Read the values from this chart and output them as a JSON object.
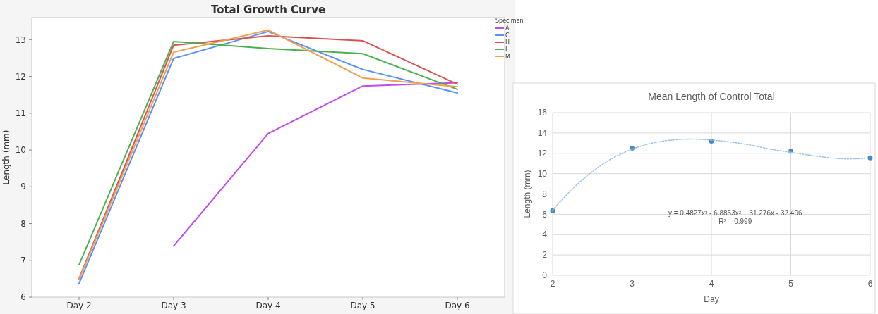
{
  "chart_data": [
    {
      "type": "line",
      "title": "Total Growth Curve",
      "ylabel": "Length (mm)",
      "legend_title": "Specimen",
      "legend": "top right",
      "grid": false,
      "marker": "none",
      "categories": [
        "Day 2",
        "Day 3",
        "Day 4",
        "Day 5",
        "Day 6"
      ],
      "ylim": [
        6,
        13.6
      ],
      "yticks": [
        6,
        7,
        8,
        9,
        10,
        11,
        12,
        13
      ],
      "series": [
        {
          "name": "A",
          "color": "#c04cf0",
          "values": [
            null,
            7.39,
            10.45,
            11.74,
            11.83
          ]
        },
        {
          "name": "C",
          "color": "#5b8ff9",
          "values": [
            6.37,
            12.49,
            13.22,
            12.19,
            11.55
          ]
        },
        {
          "name": "H",
          "color": "#d9534f",
          "values": [
            6.5,
            12.85,
            13.1,
            12.97,
            11.79
          ]
        },
        {
          "name": "L",
          "color": "#4caf50",
          "values": [
            6.88,
            12.95,
            12.76,
            12.62,
            11.65
          ]
        },
        {
          "name": "M",
          "color": "#f0a050",
          "values": [
            6.48,
            12.66,
            13.26,
            11.96,
            11.72
          ]
        }
      ]
    },
    {
      "type": "scatter",
      "title": "Mean Length of Control Total",
      "xlabel": "Day",
      "ylabel": "Length (mm)",
      "grid": true,
      "legend": false,
      "xlim": [
        2,
        6
      ],
      "xticks": [
        2,
        3,
        4,
        5,
        6
      ],
      "ylim": [
        0,
        16
      ],
      "yticks": [
        0,
        2,
        4,
        6,
        8,
        10,
        12,
        14,
        16
      ],
      "annotations": [
        "y = 0.4827x³ - 6.8853x² + 31.276x - 32.496",
        "R² = 0.999"
      ],
      "series": [
        {
          "marker": "circle",
          "color": "#4a86c8",
          "x": [
            2,
            3,
            4,
            5,
            6
          ],
          "values": [
            6.35,
            12.5,
            13.2,
            12.2,
            11.55
          ]
        },
        {
          "type": "line",
          "marker": "none",
          "line_style": "dotted",
          "color": "#9dc3e6",
          "x": [
            2,
            2.25,
            2.5,
            2.75,
            3,
            3.25,
            3.5,
            3.75,
            4,
            4.25,
            4.5,
            4.75,
            5,
            5.25,
            5.5,
            5.75,
            6
          ],
          "values": [
            6.4,
            8.5,
            10.2,
            11.5,
            12.4,
            13,
            13.3,
            13.4,
            13.3,
            13.1,
            12.8,
            12.4,
            12.1,
            11.8,
            11.55,
            11.45,
            11.55
          ]
        }
      ]
    }
  ]
}
